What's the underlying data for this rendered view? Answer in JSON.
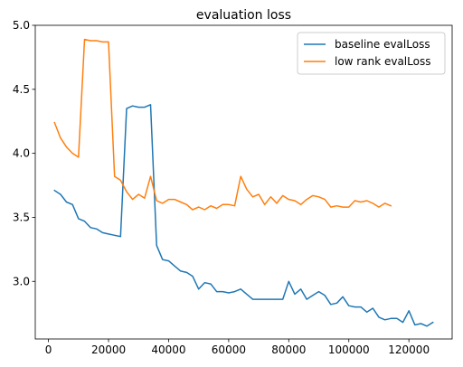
{
  "chart_data": {
    "type": "line",
    "title": "evaluation loss",
    "xlabel": "",
    "ylabel": "",
    "xlim": [
      -4400,
      134400
    ],
    "ylim": [
      2.55,
      5.0
    ],
    "xticks": [
      0,
      20000,
      40000,
      60000,
      80000,
      100000,
      120000
    ],
    "xtick_labels": [
      "0",
      "20000",
      "40000",
      "60000",
      "80000",
      "100000",
      "120000"
    ],
    "yticks": [
      3.0,
      3.5,
      4.0,
      4.5,
      5.0
    ],
    "ytick_labels": [
      "3.0",
      "3.5",
      "4.0",
      "4.5",
      "5.0"
    ],
    "grid": false,
    "legend_position": "upper right",
    "series": [
      {
        "name": "baseline evalLoss",
        "color": "#1f77b4",
        "x": [
          2000,
          4000,
          6000,
          8000,
          10000,
          12000,
          14000,
          16000,
          18000,
          20000,
          22000,
          24000,
          26000,
          28000,
          30000,
          32000,
          34000,
          36000,
          38000,
          40000,
          42000,
          44000,
          46000,
          48000,
          50000,
          52000,
          54000,
          56000,
          58000,
          60000,
          62000,
          64000,
          66000,
          68000,
          70000,
          72000,
          74000,
          76000,
          78000,
          80000,
          82000,
          84000,
          86000,
          88000,
          90000,
          92000,
          94000,
          96000,
          98000,
          100000,
          102000,
          104000,
          106000,
          108000,
          110000,
          112000,
          114000,
          116000,
          118000,
          120000,
          122000,
          124000,
          126000,
          128000
        ],
        "y": [
          3.71,
          3.68,
          3.62,
          3.6,
          3.49,
          3.47,
          3.42,
          3.41,
          3.38,
          3.37,
          3.36,
          3.35,
          4.35,
          4.37,
          4.36,
          4.36,
          4.38,
          3.28,
          3.17,
          3.16,
          3.12,
          3.08,
          3.07,
          3.04,
          2.94,
          2.99,
          2.98,
          2.92,
          2.92,
          2.91,
          2.92,
          2.94,
          2.9,
          2.86,
          2.86,
          2.86,
          2.86,
          2.86,
          2.86,
          3.0,
          2.9,
          2.94,
          2.86,
          2.89,
          2.92,
          2.89,
          2.82,
          2.83,
          2.88,
          2.81,
          2.8,
          2.8,
          2.76,
          2.79,
          2.72,
          2.7,
          2.71,
          2.71,
          2.68,
          2.77,
          2.66,
          2.67,
          2.65,
          2.68
        ]
      },
      {
        "name": "low rank evalLoss",
        "color": "#ff7f0e",
        "x": [
          2000,
          4000,
          6000,
          8000,
          10000,
          12000,
          14000,
          16000,
          18000,
          20000,
          22000,
          24000,
          26000,
          28000,
          30000,
          32000,
          34000,
          36000,
          38000,
          40000,
          42000,
          44000,
          46000,
          48000,
          50000,
          52000,
          54000,
          56000,
          58000,
          60000,
          62000,
          64000,
          66000,
          68000,
          70000,
          72000,
          74000,
          76000,
          78000,
          80000,
          82000,
          84000,
          86000,
          88000,
          90000,
          92000,
          94000,
          96000,
          98000,
          100000,
          102000,
          104000,
          106000,
          108000,
          110000,
          112000,
          114000
        ],
        "y": [
          4.24,
          4.12,
          4.05,
          4.0,
          3.97,
          4.89,
          4.88,
          4.88,
          4.87,
          4.87,
          3.82,
          3.79,
          3.7,
          3.64,
          3.68,
          3.65,
          3.82,
          3.63,
          3.61,
          3.64,
          3.64,
          3.62,
          3.6,
          3.56,
          3.58,
          3.56,
          3.59,
          3.57,
          3.6,
          3.6,
          3.59,
          3.82,
          3.72,
          3.66,
          3.68,
          3.6,
          3.66,
          3.61,
          3.67,
          3.64,
          3.63,
          3.6,
          3.64,
          3.67,
          3.66,
          3.64,
          3.58,
          3.59,
          3.58,
          3.58,
          3.63,
          3.62,
          3.63,
          3.61,
          3.58,
          3.61,
          3.59
        ]
      }
    ]
  }
}
